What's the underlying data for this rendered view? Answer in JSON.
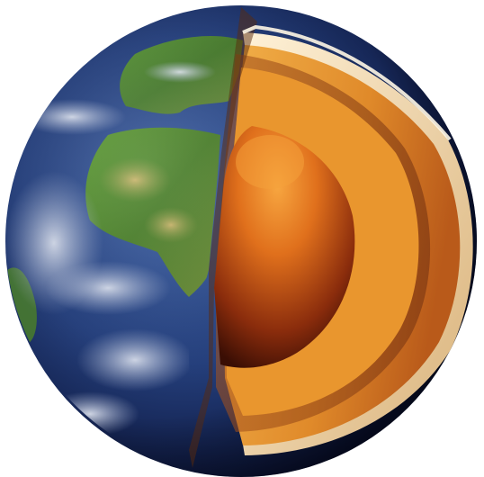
{
  "image": {
    "subject": "earth-cutaway",
    "background": "#ffffff",
    "colors": {
      "ocean_dark": "#0e1a4a",
      "ocean_mid": "#25407e",
      "land_green": "#4f8a2e",
      "land_dry": "#a8a05a",
      "cloud": "#c9d2e6",
      "crust": "#f0d9a8",
      "mantle_outer": "#c8601e",
      "mantle_inner": "#e89a32",
      "outer_core": "#d8741e",
      "inner_core": "#7a2a0e"
    }
  }
}
